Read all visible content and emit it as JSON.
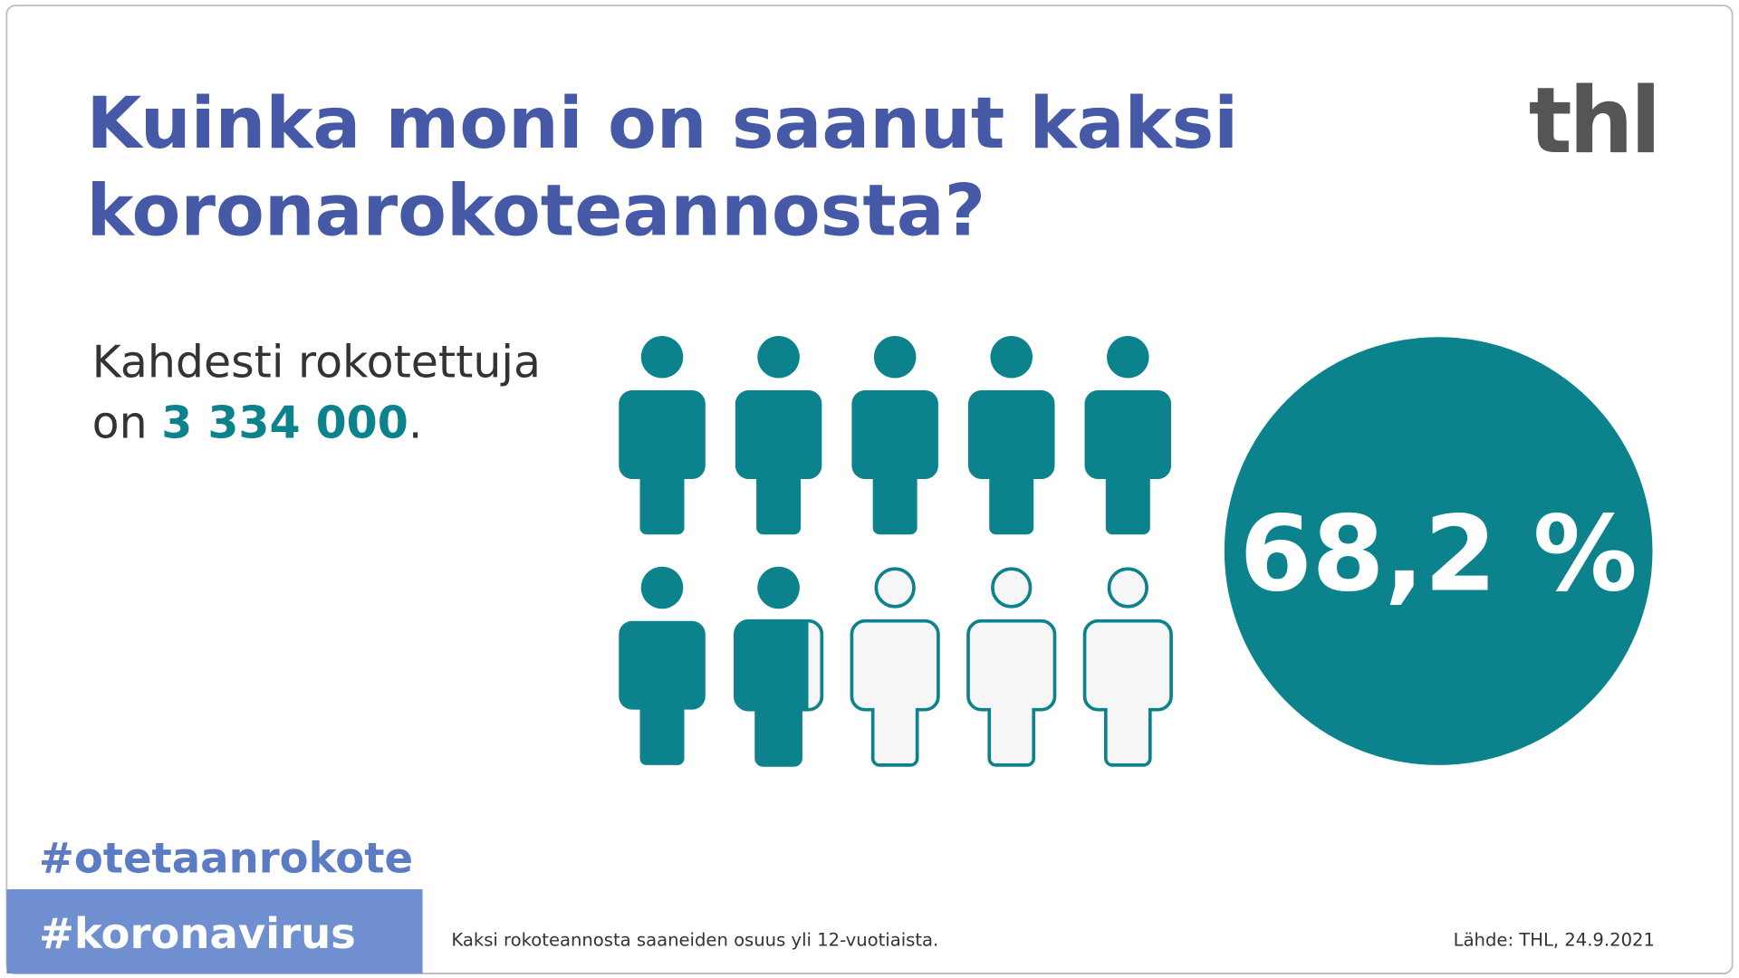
{
  "chart_data": {
    "type": "pictograph",
    "title_lines": [
      "Kuinka moni on saanut kaksi",
      "koronarokoteannosta?"
    ],
    "logo": "thl",
    "subtitle": {
      "line1": "Kahdesti rokotettuja",
      "prefix": "on",
      "count": "3 334 000",
      "suffix": "."
    },
    "values": [
      68.2
    ],
    "value_labels": [
      "68,2 %"
    ],
    "color": "#0b828c",
    "empty_color": "#f6f6f6",
    "hashtags": [
      "#otetaanrokote",
      "#koronavirus"
    ],
    "note": "Kaksi rokoteannosta saaneiden osuus yli 12-vuotiaista.",
    "source": "Lähde: THL, 24.9.2021"
  }
}
